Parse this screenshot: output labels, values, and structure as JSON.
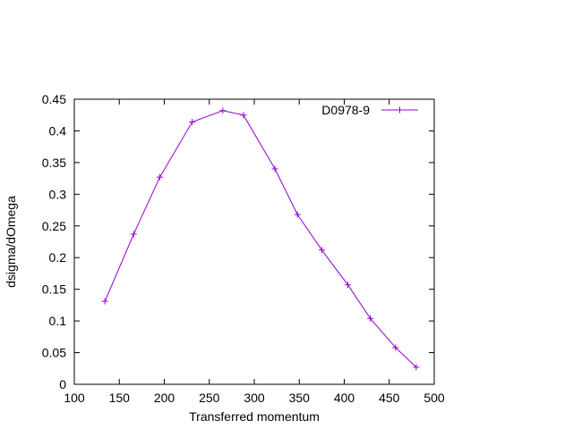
{
  "chart_data": {
    "type": "line",
    "title": "",
    "xlabel": "Transferred momentum",
    "ylabel": "dsigma/dOmega",
    "xlim": [
      100,
      500
    ],
    "ylim": [
      0,
      0.45
    ],
    "x_ticks": [
      100,
      150,
      200,
      250,
      300,
      350,
      400,
      450,
      500
    ],
    "y_ticks": [
      0,
      0.05,
      0.1,
      0.15,
      0.2,
      0.25,
      0.3,
      0.35,
      0.4,
      0.45
    ],
    "x_tick_labels": [
      "100",
      "150",
      "200",
      "250",
      "300",
      "350",
      "400",
      "450",
      "500"
    ],
    "y_tick_labels": [
      "0",
      "0.05",
      "0.1",
      "0.15",
      "0.2",
      "0.25",
      "0.3",
      "0.35",
      "0.4",
      "0.45"
    ],
    "grid": false,
    "legend_position": "top-right",
    "series": [
      {
        "name": "D0978-9",
        "color": "#9400d3",
        "marker": "plus",
        "x": [
          134,
          166,
          195,
          231,
          265,
          288,
          323,
          348,
          375,
          404,
          429,
          457,
          480
        ],
        "y": [
          0.131,
          0.237,
          0.327,
          0.414,
          0.432,
          0.425,
          0.34,
          0.268,
          0.212,
          0.157,
          0.104,
          0.058,
          0.027
        ]
      }
    ]
  }
}
